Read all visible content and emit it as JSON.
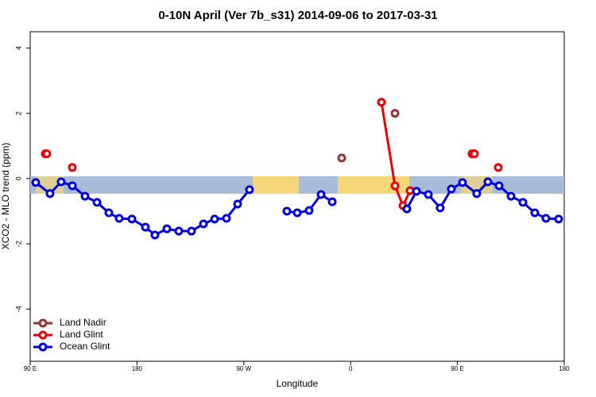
{
  "chart_data": {
    "type": "line",
    "title": "0-10N April (Ver 7b_s31)   2014-09-06 to 2017-03-31",
    "x_label": "Longitude",
    "y_label": "XCO2 - MLO trend (ppm)",
    "xlim": [
      90,
      540
    ],
    "xticks": [
      {
        "value": 90,
        "label": "90 E"
      },
      180,
      {
        "value": 270,
        "label": "90 W"
      },
      {
        "value": 360,
        "label": "0"
      },
      {
        "value": 450,
        "label": "90 E"
      },
      {
        "value": 540,
        "label": "180"
      }
    ],
    "ylim": [
      -5.6,
      4.5
    ],
    "yticks": [
      -4,
      -2,
      0,
      2,
      4
    ],
    "legend": "bottom-left",
    "series": [
      {
        "name": "Land Nadir",
        "color": "#993333",
        "x": [
          352.5,
          null,
          397.4
        ],
        "values": [
          0.63,
          null,
          2.0
        ]
      },
      {
        "name": "Land Glint",
        "color": "#ee0000",
        "x": [
          102.7,
          104,
          null,
          125.5,
          null,
          386,
          397.4,
          404.1,
          410.1,
          null,
          462.3,
          464.3,
          null,
          484.4
        ],
        "values": [
          0.76,
          0.76,
          null,
          0.34,
          null,
          2.34,
          -0.22,
          -0.83,
          -0.37,
          null,
          0.76,
          0.76,
          null,
          0.34
        ]
      },
      {
        "name": "Ocean Glint",
        "color": "#0000dd",
        "x": [
          94.7,
          106.7,
          116.1,
          125.5,
          136.2,
          146.3,
          156.3,
          165,
          175.7,
          187.1,
          195.1,
          205.2,
          215.2,
          225.9,
          236,
          245.4,
          255.4,
          264.8,
          274.8,
          null,
          306.3,
          315,
          325,
          335.1,
          344.5,
          null,
          407.4,
          415.5,
          425.5,
          435.5,
          444.9,
          454.3,
          466.3,
          475.7,
          485.1,
          495.2,
          505.2,
          515.2,
          524.6,
          535.3
        ],
        "values": [
          -0.12,
          -0.46,
          -0.1,
          -0.22,
          -0.54,
          -0.73,
          -1.05,
          -1.22,
          -1.24,
          -1.49,
          -1.73,
          -1.54,
          -1.61,
          -1.61,
          -1.39,
          -1.24,
          -1.22,
          -0.78,
          -0.34,
          null,
          -1.0,
          -1.05,
          -0.98,
          -0.49,
          -0.71,
          null,
          -0.93,
          -0.39,
          -0.49,
          -0.9,
          -0.32,
          -0.12,
          -0.46,
          -0.1,
          -0.22,
          -0.54,
          -0.73,
          -1.05,
          -1.22,
          -1.24
        ]
      }
    ]
  }
}
